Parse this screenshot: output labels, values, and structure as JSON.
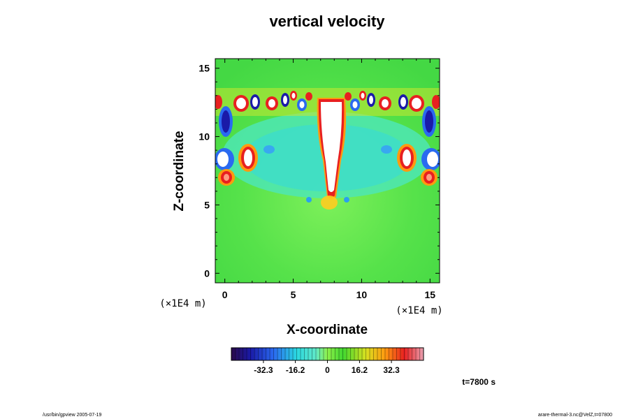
{
  "chart_data": {
    "type": "heatmap",
    "title": "vertical velocity",
    "xlabel": "X-coordinate",
    "ylabel": "Z-coordinate",
    "x_unit": "(×1E4 m)",
    "y_unit": "(×1E4 m)",
    "xlim": [
      -0.7,
      15.7
    ],
    "ylim": [
      -0.7,
      15.7
    ],
    "x_ticks": [
      "0",
      "5",
      "10",
      "15"
    ],
    "y_ticks": [
      "0",
      "5",
      "10",
      "15"
    ],
    "colorbar": {
      "tick_labels": [
        "-32.3",
        "-16.2",
        "0",
        "16.2",
        "32.3"
      ],
      "tick_values": [
        -32.3,
        -16.2,
        0,
        16.2,
        32.3
      ],
      "range": [
        -48.5,
        48.5
      ],
      "colors": [
        "#2a0a4a",
        "#1a1aa8",
        "#2a6af0",
        "#2ad8e0",
        "#60e8c8",
        "#8ef04a",
        "#40d830",
        "#d8e020",
        "#ff9a10",
        "#e82020",
        "#e8a0b0"
      ]
    },
    "features": [
      {
        "label": "central updraft",
        "x": 7.7,
        "z_min": 5.5,
        "z_max": 12.8,
        "value": "positive (above 48)"
      },
      {
        "label": "downdraft cells",
        "z_range": [
          7.5,
          12.5
        ],
        "value": "negative"
      },
      {
        "label": "updraft cells",
        "z_range": [
          6.3,
          13.2
        ],
        "value": "positive"
      }
    ],
    "time_label": "t=7800 s"
  },
  "footer": {
    "left": "/usr/bin/gpview 2005-07-19",
    "right": "arare-thermal-3.nc@VelZ,t=07800"
  }
}
